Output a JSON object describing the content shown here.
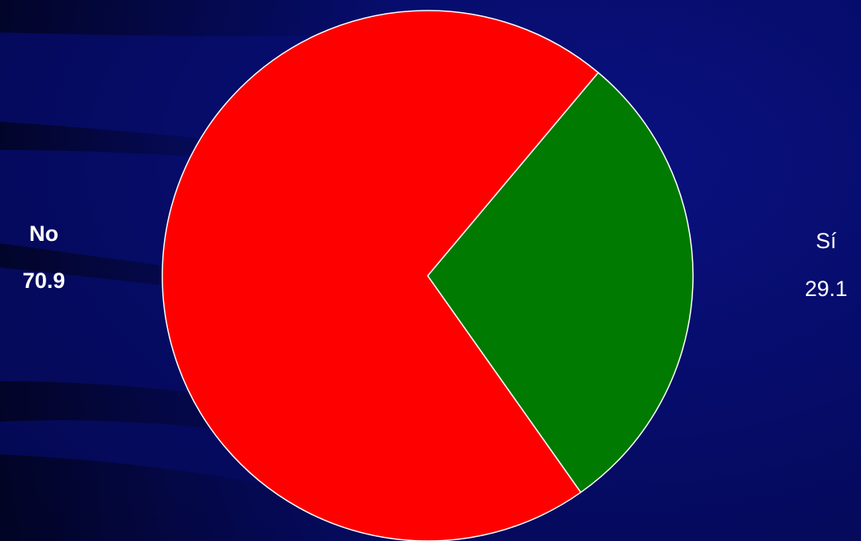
{
  "chart_data": {
    "type": "pie",
    "slices": [
      {
        "label": "Sí",
        "value": 29.1,
        "color": "#007a00"
      },
      {
        "label": "No",
        "value": 70.9,
        "color": "#ff0000"
      }
    ],
    "background_color": "#060c6a",
    "slice_border_color": "#ffffff"
  }
}
